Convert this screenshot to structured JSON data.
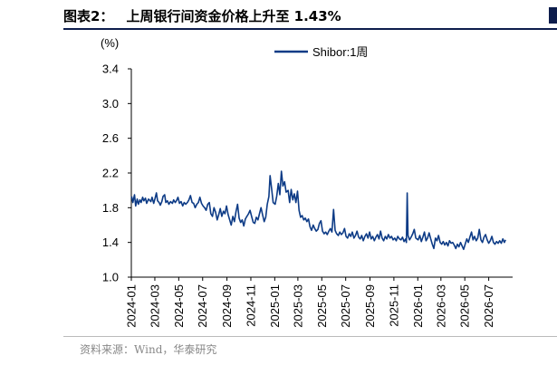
{
  "header": {
    "figure_label": "图表2：",
    "figure_title": "上周银行间资金价格上升至 1.43%"
  },
  "footer": {
    "source": "资料来源：Wind，华泰研究"
  },
  "colors": {
    "series": "#0d3b86",
    "rule": "#0d1d4c"
  },
  "chart_data": {
    "type": "line",
    "title": "",
    "ylabel": "(%)",
    "xlabel": "",
    "ylim": [
      1.0,
      3.4
    ],
    "yticks": [
      "1.0",
      "1.4",
      "1.8",
      "2.2",
      "2.6",
      "3.0",
      "3.4"
    ],
    "xlim": [
      "2024-01-01",
      "2026-08-31"
    ],
    "xticks": [
      "2024-01",
      "2024-03",
      "2024-05",
      "2024-07",
      "2024-09",
      "2024-11",
      "2025-01",
      "2025-03",
      "2025-05",
      "2025-07",
      "2025-09",
      "2025-11",
      "2026-01",
      "2026-03",
      "2026-05",
      "2026-07"
    ],
    "legend_position": "top-right",
    "grid": false,
    "series": [
      {
        "name": "Shibor:1周",
        "points": [
          [
            "2024-01-02",
            1.93
          ],
          [
            "2024-01-05",
            1.86
          ],
          [
            "2024-01-09",
            1.95
          ],
          [
            "2024-01-12",
            1.82
          ],
          [
            "2024-01-16",
            1.9
          ],
          [
            "2024-01-19",
            1.84
          ],
          [
            "2024-01-23",
            1.89
          ],
          [
            "2024-01-26",
            1.86
          ],
          [
            "2024-01-30",
            1.92
          ],
          [
            "2024-02-02",
            1.88
          ],
          [
            "2024-02-06",
            1.91
          ],
          [
            "2024-02-09",
            1.85
          ],
          [
            "2024-02-14",
            1.9
          ],
          [
            "2024-02-20",
            1.87
          ],
          [
            "2024-02-23",
            1.92
          ],
          [
            "2024-02-27",
            1.85
          ],
          [
            "2024-03-01",
            1.9
          ],
          [
            "2024-03-05",
            1.97
          ],
          [
            "2024-03-08",
            1.88
          ],
          [
            "2024-03-12",
            1.86
          ],
          [
            "2024-03-15",
            1.83
          ],
          [
            "2024-03-19",
            1.87
          ],
          [
            "2024-03-22",
            1.93
          ],
          [
            "2024-03-26",
            1.95
          ],
          [
            "2024-03-29",
            1.86
          ],
          [
            "2024-04-02",
            1.88
          ],
          [
            "2024-04-06",
            1.84
          ],
          [
            "2024-04-10",
            1.87
          ],
          [
            "2024-04-15",
            1.85
          ],
          [
            "2024-04-18",
            1.89
          ],
          [
            "2024-04-22",
            1.86
          ],
          [
            "2024-04-25",
            1.88
          ],
          [
            "2024-04-29",
            1.92
          ],
          [
            "2024-05-03",
            1.85
          ],
          [
            "2024-05-07",
            1.87
          ],
          [
            "2024-05-11",
            1.82
          ],
          [
            "2024-05-15",
            1.86
          ],
          [
            "2024-05-19",
            1.84
          ],
          [
            "2024-05-23",
            1.86
          ],
          [
            "2024-05-27",
            1.89
          ],
          [
            "2024-05-31",
            1.94
          ],
          [
            "2024-06-04",
            1.86
          ],
          [
            "2024-06-08",
            1.85
          ],
          [
            "2024-06-12",
            1.8
          ],
          [
            "2024-06-16",
            1.84
          ],
          [
            "2024-06-20",
            1.86
          ],
          [
            "2024-06-24",
            1.92
          ],
          [
            "2024-06-28",
            1.85
          ],
          [
            "2024-07-02",
            1.82
          ],
          [
            "2024-07-06",
            1.8
          ],
          [
            "2024-07-10",
            1.77
          ],
          [
            "2024-07-14",
            1.84
          ],
          [
            "2024-07-18",
            1.86
          ],
          [
            "2024-07-22",
            1.73
          ],
          [
            "2024-07-26",
            1.7
          ],
          [
            "2024-07-30",
            1.8
          ],
          [
            "2024-08-03",
            1.75
          ],
          [
            "2024-08-07",
            1.66
          ],
          [
            "2024-08-11",
            1.72
          ],
          [
            "2024-08-15",
            1.79
          ],
          [
            "2024-08-19",
            1.7
          ],
          [
            "2024-08-23",
            1.76
          ],
          [
            "2024-08-27",
            1.73
          ],
          [
            "2024-08-31",
            1.82
          ],
          [
            "2024-09-04",
            1.72
          ],
          [
            "2024-09-08",
            1.66
          ],
          [
            "2024-09-12",
            1.6
          ],
          [
            "2024-09-16",
            1.7
          ],
          [
            "2024-09-20",
            1.64
          ],
          [
            "2024-09-24",
            1.75
          ],
          [
            "2024-09-28",
            1.84
          ],
          [
            "2024-10-02",
            1.68
          ],
          [
            "2024-10-06",
            1.63
          ],
          [
            "2024-10-10",
            1.66
          ],
          [
            "2024-10-14",
            1.59
          ],
          [
            "2024-10-18",
            1.67
          ],
          [
            "2024-10-22",
            1.7
          ],
          [
            "2024-10-26",
            1.73
          ],
          [
            "2024-10-30",
            1.77
          ],
          [
            "2024-11-03",
            1.7
          ],
          [
            "2024-11-07",
            1.63
          ],
          [
            "2024-11-11",
            1.62
          ],
          [
            "2024-11-15",
            1.69
          ],
          [
            "2024-11-19",
            1.66
          ],
          [
            "2024-11-23",
            1.73
          ],
          [
            "2024-11-27",
            1.8
          ],
          [
            "2024-12-01",
            1.72
          ],
          [
            "2024-12-05",
            1.64
          ],
          [
            "2024-12-09",
            1.69
          ],
          [
            "2024-12-13",
            1.84
          ],
          [
            "2024-12-17",
            1.93
          ],
          [
            "2024-12-20",
            2.17
          ],
          [
            "2024-12-24",
            2.02
          ],
          [
            "2024-12-28",
            1.86
          ],
          [
            "2025-01-02",
            1.84
          ],
          [
            "2025-01-06",
            1.93
          ],
          [
            "2025-01-10",
            2.08
          ],
          [
            "2025-01-14",
            1.95
          ],
          [
            "2025-01-18",
            2.22
          ],
          [
            "2025-01-22",
            2.05
          ],
          [
            "2025-01-26",
            2.1
          ],
          [
            "2025-01-30",
            1.98
          ],
          [
            "2025-02-04",
            2.0
          ],
          [
            "2025-02-08",
            1.86
          ],
          [
            "2025-02-12",
            2.01
          ],
          [
            "2025-02-16",
            1.89
          ],
          [
            "2025-02-20",
            1.96
          ],
          [
            "2025-02-24",
            1.86
          ],
          [
            "2025-02-28",
            1.99
          ],
          [
            "2025-03-04",
            1.77
          ],
          [
            "2025-03-08",
            1.69
          ],
          [
            "2025-03-12",
            1.71
          ],
          [
            "2025-03-16",
            1.66
          ],
          [
            "2025-03-20",
            1.68
          ],
          [
            "2025-03-24",
            1.64
          ],
          [
            "2025-03-28",
            1.67
          ],
          [
            "2025-04-01",
            1.58
          ],
          [
            "2025-04-05",
            1.54
          ],
          [
            "2025-04-09",
            1.6
          ],
          [
            "2025-04-13",
            1.56
          ],
          [
            "2025-04-17",
            1.53
          ],
          [
            "2025-04-21",
            1.55
          ],
          [
            "2025-04-25",
            1.62
          ],
          [
            "2025-04-29",
            1.65
          ],
          [
            "2025-05-03",
            1.53
          ],
          [
            "2025-05-07",
            1.5
          ],
          [
            "2025-05-11",
            1.52
          ],
          [
            "2025-05-15",
            1.49
          ],
          [
            "2025-05-19",
            1.53
          ],
          [
            "2025-05-23",
            1.56
          ],
          [
            "2025-05-27",
            1.52
          ],
          [
            "2025-05-31",
            1.78
          ],
          [
            "2025-06-04",
            1.54
          ],
          [
            "2025-06-08",
            1.5
          ],
          [
            "2025-06-12",
            1.48
          ],
          [
            "2025-06-16",
            1.52
          ],
          [
            "2025-06-20",
            1.49
          ],
          [
            "2025-06-24",
            1.51
          ],
          [
            "2025-06-28",
            1.56
          ],
          [
            "2025-07-02",
            1.47
          ],
          [
            "2025-07-06",
            1.45
          ],
          [
            "2025-07-10",
            1.5
          ],
          [
            "2025-07-14",
            1.47
          ],
          [
            "2025-07-18",
            1.52
          ],
          [
            "2025-07-22",
            1.45
          ],
          [
            "2025-07-26",
            1.48
          ],
          [
            "2025-07-30",
            1.53
          ],
          [
            "2025-08-03",
            1.46
          ],
          [
            "2025-08-07",
            1.44
          ],
          [
            "2025-08-11",
            1.48
          ],
          [
            "2025-08-15",
            1.42
          ],
          [
            "2025-08-19",
            1.47
          ],
          [
            "2025-08-23",
            1.5
          ],
          [
            "2025-08-27",
            1.45
          ],
          [
            "2025-08-31",
            1.52
          ],
          [
            "2025-09-04",
            1.44
          ],
          [
            "2025-09-08",
            1.47
          ],
          [
            "2025-09-12",
            1.42
          ],
          [
            "2025-09-16",
            1.46
          ],
          [
            "2025-09-20",
            1.49
          ],
          [
            "2025-09-24",
            1.44
          ],
          [
            "2025-09-28",
            1.53
          ],
          [
            "2025-10-02",
            1.45
          ],
          [
            "2025-10-06",
            1.42
          ],
          [
            "2025-10-10",
            1.47
          ],
          [
            "2025-10-14",
            1.44
          ],
          [
            "2025-10-18",
            1.49
          ],
          [
            "2025-10-22",
            1.45
          ],
          [
            "2025-10-26",
            1.47
          ],
          [
            "2025-10-30",
            1.43
          ],
          [
            "2025-11-03",
            1.45
          ],
          [
            "2025-11-07",
            1.42
          ],
          [
            "2025-11-11",
            1.47
          ],
          [
            "2025-11-15",
            1.44
          ],
          [
            "2025-11-19",
            1.43
          ],
          [
            "2025-11-23",
            1.46
          ],
          [
            "2025-11-27",
            1.41
          ],
          [
            "2025-12-01",
            1.44
          ],
          [
            "2025-12-03",
            1.4
          ],
          [
            "2025-12-05",
            1.97
          ],
          [
            "2025-12-07",
            1.48
          ],
          [
            "2025-12-11",
            1.43
          ],
          [
            "2025-12-15",
            1.46
          ],
          [
            "2025-12-19",
            1.5
          ],
          [
            "2025-12-23",
            1.55
          ],
          [
            "2025-12-27",
            1.45
          ],
          [
            "2026-01-02",
            1.43
          ],
          [
            "2026-01-06",
            1.48
          ],
          [
            "2026-01-10",
            1.41
          ],
          [
            "2026-01-14",
            1.46
          ],
          [
            "2026-01-18",
            1.52
          ],
          [
            "2026-01-22",
            1.42
          ],
          [
            "2026-01-26",
            1.45
          ],
          [
            "2026-01-30",
            1.51
          ],
          [
            "2026-02-03",
            1.44
          ],
          [
            "2026-02-07",
            1.38
          ],
          [
            "2026-02-11",
            1.33
          ],
          [
            "2026-02-15",
            1.45
          ],
          [
            "2026-02-19",
            1.42
          ],
          [
            "2026-02-23",
            1.48
          ],
          [
            "2026-02-27",
            1.4
          ],
          [
            "2026-03-03",
            1.38
          ],
          [
            "2026-03-07",
            1.41
          ],
          [
            "2026-03-11",
            1.37
          ],
          [
            "2026-03-15",
            1.4
          ],
          [
            "2026-03-19",
            1.36
          ],
          [
            "2026-03-23",
            1.42
          ],
          [
            "2026-03-27",
            1.39
          ],
          [
            "2026-03-31",
            1.4
          ],
          [
            "2026-04-04",
            1.37
          ],
          [
            "2026-04-08",
            1.33
          ],
          [
            "2026-04-12",
            1.38
          ],
          [
            "2026-04-16",
            1.35
          ],
          [
            "2026-04-20",
            1.4
          ],
          [
            "2026-04-24",
            1.36
          ],
          [
            "2026-04-28",
            1.32
          ],
          [
            "2026-05-02",
            1.38
          ],
          [
            "2026-05-06",
            1.44
          ],
          [
            "2026-05-10",
            1.4
          ],
          [
            "2026-05-14",
            1.46
          ],
          [
            "2026-05-18",
            1.52
          ],
          [
            "2026-05-22",
            1.43
          ],
          [
            "2026-05-26",
            1.47
          ],
          [
            "2026-05-30",
            1.42
          ],
          [
            "2026-06-03",
            1.45
          ],
          [
            "2026-06-07",
            1.55
          ],
          [
            "2026-06-11",
            1.43
          ],
          [
            "2026-06-15",
            1.4
          ],
          [
            "2026-06-19",
            1.46
          ],
          [
            "2026-06-23",
            1.49
          ],
          [
            "2026-06-27",
            1.43
          ],
          [
            "2026-07-01",
            1.39
          ],
          [
            "2026-07-05",
            1.42
          ],
          [
            "2026-07-09",
            1.47
          ],
          [
            "2026-07-13",
            1.4
          ],
          [
            "2026-07-17",
            1.38
          ],
          [
            "2026-07-21",
            1.41
          ],
          [
            "2026-07-25",
            1.39
          ],
          [
            "2026-07-29",
            1.42
          ],
          [
            "2026-08-02",
            1.39
          ],
          [
            "2026-08-06",
            1.44
          ],
          [
            "2026-08-10",
            1.4
          ],
          [
            "2026-08-13",
            1.43
          ]
        ]
      }
    ]
  }
}
